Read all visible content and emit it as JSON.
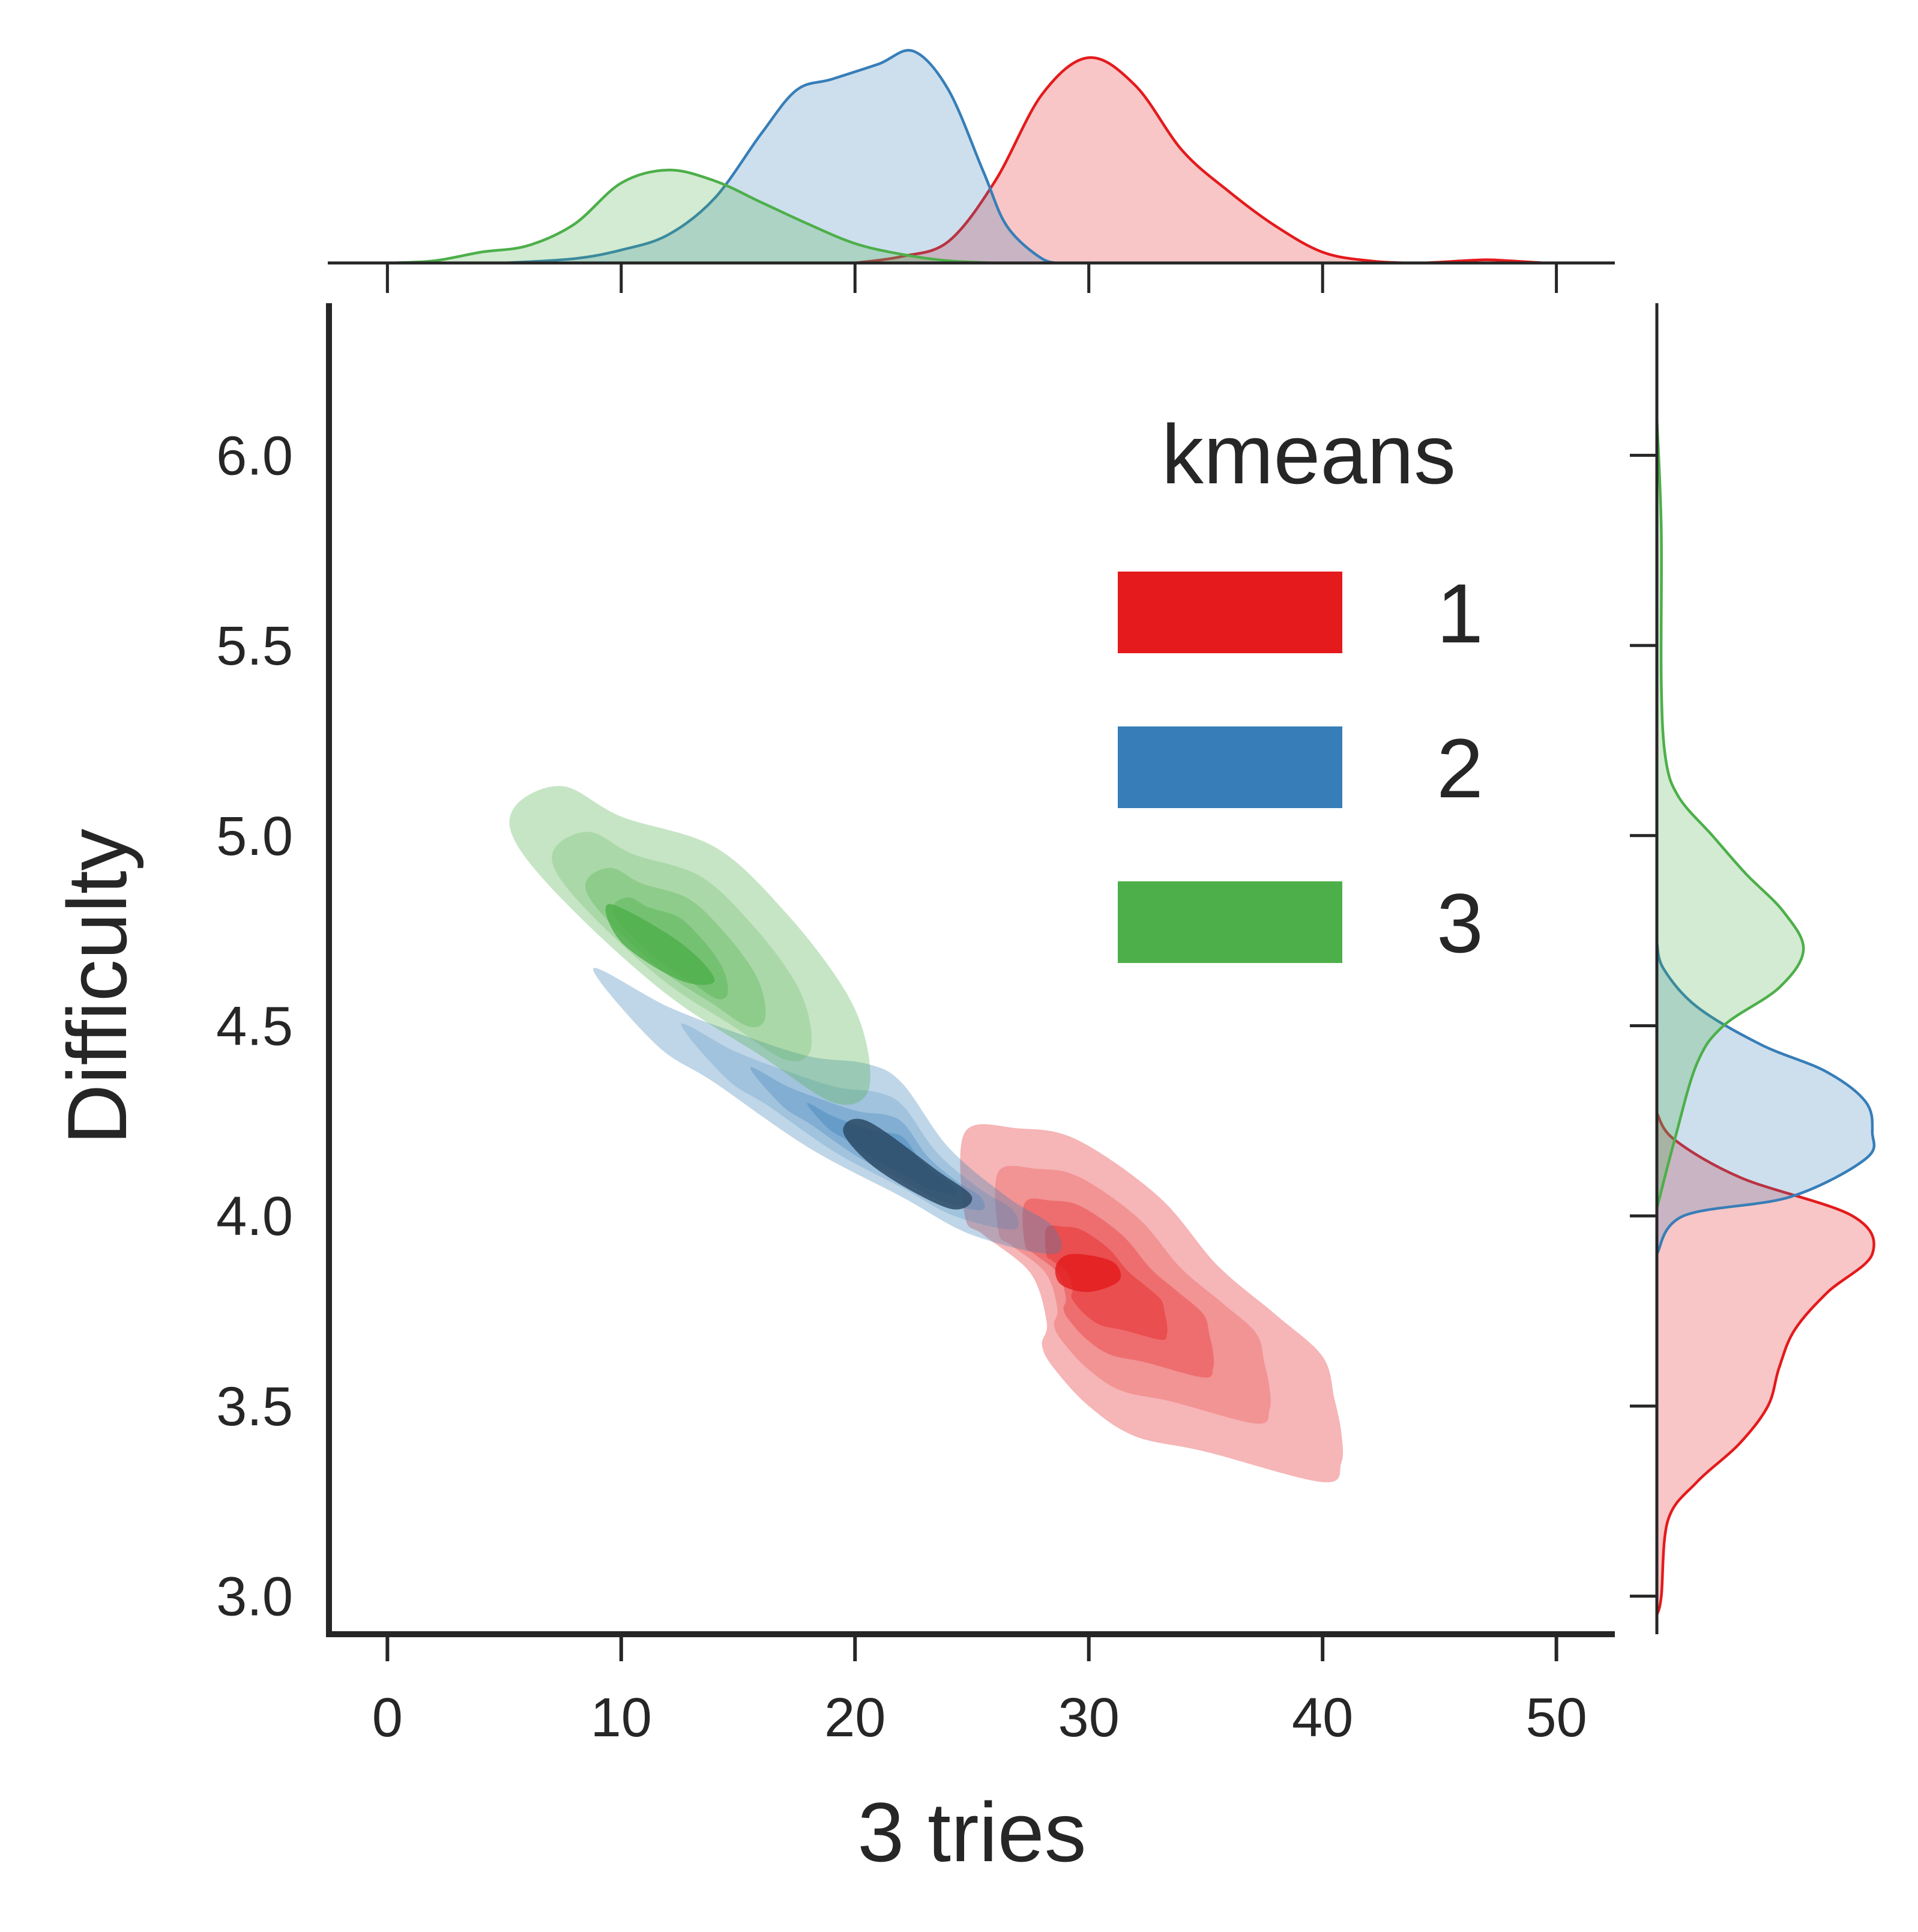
{
  "chart_data": {
    "type": "kde-joint",
    "xlabel": "3 tries",
    "ylabel": "Difficulty",
    "xlim": [
      -2.5,
      52.5
    ],
    "ylim": [
      2.9,
      6.4
    ],
    "xticks": [
      0,
      10,
      20,
      30,
      40,
      50
    ],
    "xtick_labels": [
      "0",
      "10",
      "20",
      "30",
      "40",
      "50"
    ],
    "yticks": [
      3.0,
      3.5,
      4.0,
      4.5,
      5.0,
      5.5,
      6.0
    ],
    "ytick_labels": [
      "3.0",
      "3.5",
      "4.0",
      "4.5",
      "5.0",
      "5.5",
      "6.0"
    ],
    "grid": false,
    "legend": {
      "title": "kmeans",
      "placement": "top-right",
      "entries": [
        {
          "label": "1",
          "color": "#e41a1c"
        },
        {
          "label": "2",
          "color": "#377eb8"
        },
        {
          "label": "3",
          "color": "#4daf4a"
        }
      ]
    },
    "series": [
      {
        "name": "1",
        "color": "#e41a1c",
        "joint_density_outline": [
          [
            24.7,
            4.22
          ],
          [
            27.0,
            4.23
          ],
          [
            29.5,
            4.2
          ],
          [
            33.0,
            4.05
          ],
          [
            35.5,
            3.87
          ],
          [
            38.0,
            3.74
          ],
          [
            40.0,
            3.63
          ],
          [
            40.5,
            3.52
          ],
          [
            40.8,
            3.43
          ],
          [
            40.8,
            3.35
          ],
          [
            40.0,
            3.3
          ],
          [
            35.0,
            3.38
          ],
          [
            32.0,
            3.42
          ],
          [
            30.0,
            3.5
          ],
          [
            28.5,
            3.6
          ],
          [
            28.0,
            3.66
          ],
          [
            28.2,
            3.72
          ],
          [
            27.5,
            3.85
          ],
          [
            25.5,
            3.95
          ],
          [
            24.7,
            4.0
          ]
        ],
        "joint_density_core": [
          [
            29.3,
            3.9
          ],
          [
            31.0,
            3.88
          ],
          [
            31.3,
            3.83
          ],
          [
            30.0,
            3.8
          ],
          [
            28.8,
            3.82
          ],
          [
            28.6,
            3.87
          ]
        ],
        "x_marginal": [
          [
            20,
            0.0
          ],
          [
            22,
            0.03
          ],
          [
            24,
            0.1
          ],
          [
            26,
            0.38
          ],
          [
            28,
            0.78
          ],
          [
            30,
            0.95
          ],
          [
            32,
            0.82
          ],
          [
            34,
            0.52
          ],
          [
            36,
            0.33
          ],
          [
            38,
            0.17
          ],
          [
            40,
            0.05
          ],
          [
            42,
            0.01
          ],
          [
            44,
            0.0
          ],
          [
            46,
            0.01
          ],
          [
            47,
            0.015
          ],
          [
            48,
            0.01
          ],
          [
            49.5,
            0.0
          ]
        ],
        "y_marginal": [
          [
            2.95,
            0.0
          ],
          [
            3.0,
            0.02
          ],
          [
            3.2,
            0.05
          ],
          [
            3.3,
            0.18
          ],
          [
            3.4,
            0.37
          ],
          [
            3.5,
            0.5
          ],
          [
            3.6,
            0.55
          ],
          [
            3.7,
            0.62
          ],
          [
            3.8,
            0.77
          ],
          [
            3.9,
            0.97
          ],
          [
            4.0,
            0.88
          ],
          [
            4.1,
            0.38
          ],
          [
            4.2,
            0.08
          ],
          [
            4.27,
            0.0
          ]
        ]
      },
      {
        "name": "2",
        "color": "#377eb8",
        "joint_density_outline": [
          [
            8.8,
            4.65
          ],
          [
            12.0,
            4.55
          ],
          [
            15.0,
            4.48
          ],
          [
            18.0,
            4.42
          ],
          [
            20.5,
            4.4
          ],
          [
            22.0,
            4.35
          ],
          [
            24.0,
            4.18
          ],
          [
            26.5,
            4.05
          ],
          [
            28.5,
            3.97
          ],
          [
            28.5,
            3.9
          ],
          [
            25.0,
            3.95
          ],
          [
            22.0,
            4.05
          ],
          [
            18.0,
            4.18
          ],
          [
            14.0,
            4.35
          ],
          [
            11.5,
            4.45
          ]
        ],
        "joint_density_core": [
          [
            20.5,
            4.25
          ],
          [
            23.5,
            4.12
          ],
          [
            25.0,
            4.05
          ],
          [
            24.0,
            4.02
          ],
          [
            21.0,
            4.12
          ],
          [
            19.5,
            4.22
          ]
        ],
        "x_marginal": [
          [
            5,
            0.0
          ],
          [
            8,
            0.02
          ],
          [
            10,
            0.06
          ],
          [
            12,
            0.13
          ],
          [
            14,
            0.3
          ],
          [
            16,
            0.6
          ],
          [
            17.5,
            0.8
          ],
          [
            19,
            0.85
          ],
          [
            21,
            0.92
          ],
          [
            22.5,
            0.98
          ],
          [
            24,
            0.8
          ],
          [
            25.5,
            0.42
          ],
          [
            26.5,
            0.17
          ],
          [
            28,
            0.02
          ],
          [
            29,
            0.0
          ]
        ],
        "y_marginal": [
          [
            3.9,
            0.0
          ],
          [
            4.0,
            0.12
          ],
          [
            4.05,
            0.6
          ],
          [
            4.15,
            0.94
          ],
          [
            4.22,
            0.97
          ],
          [
            4.3,
            0.94
          ],
          [
            4.38,
            0.76
          ],
          [
            4.45,
            0.47
          ],
          [
            4.55,
            0.18
          ],
          [
            4.65,
            0.03
          ],
          [
            4.72,
            0.0
          ]
        ]
      },
      {
        "name": "3",
        "color": "#4daf4a",
        "joint_density_outline": [
          [
            5.5,
            5.08
          ],
          [
            7.5,
            5.13
          ],
          [
            10.0,
            5.05
          ],
          [
            14.0,
            4.97
          ],
          [
            17.0,
            4.8
          ],
          [
            19.5,
            4.6
          ],
          [
            20.5,
            4.45
          ],
          [
            20.5,
            4.32
          ],
          [
            19.0,
            4.3
          ],
          [
            16.0,
            4.42
          ],
          [
            12.0,
            4.58
          ],
          [
            8.0,
            4.8
          ],
          [
            5.5,
            4.98
          ]
        ],
        "joint_density_core": [
          [
            9.5,
            4.82
          ],
          [
            12.5,
            4.72
          ],
          [
            14.0,
            4.62
          ],
          [
            12.5,
            4.62
          ],
          [
            10.0,
            4.72
          ]
        ],
        "x_marginal": [
          [
            0,
            0.0
          ],
          [
            2,
            0.01
          ],
          [
            4,
            0.05
          ],
          [
            6,
            0.08
          ],
          [
            8,
            0.18
          ],
          [
            10,
            0.37
          ],
          [
            12,
            0.43
          ],
          [
            14,
            0.38
          ],
          [
            16,
            0.28
          ],
          [
            18,
            0.18
          ],
          [
            20,
            0.09
          ],
          [
            22,
            0.04
          ],
          [
            24,
            0.01
          ],
          [
            26,
            0.0
          ]
        ],
        "y_marginal": [
          [
            4.02,
            0.0
          ],
          [
            4.2,
            0.08
          ],
          [
            4.4,
            0.18
          ],
          [
            4.5,
            0.3
          ],
          [
            4.6,
            0.55
          ],
          [
            4.7,
            0.66
          ],
          [
            4.8,
            0.57
          ],
          [
            4.9,
            0.4
          ],
          [
            5.0,
            0.25
          ],
          [
            5.1,
            0.1
          ],
          [
            5.2,
            0.04
          ],
          [
            5.4,
            0.02
          ],
          [
            5.8,
            0.02
          ],
          [
            6.1,
            0.0
          ]
        ]
      }
    ]
  }
}
